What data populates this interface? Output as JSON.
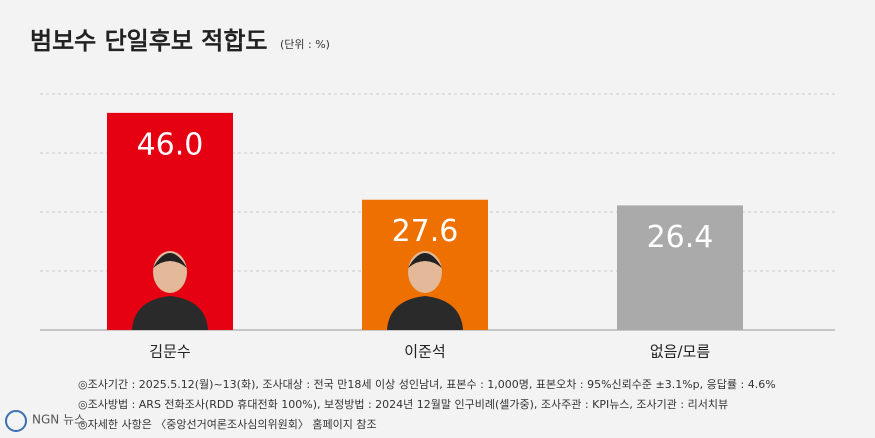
{
  "chart_data": {
    "type": "bar",
    "title": "범보수 단일후보 적합도",
    "subtitle": "(단위 : %)",
    "categories": [
      "김문수",
      "이준석",
      "없음/모름"
    ],
    "values": [
      46.0,
      27.6,
      26.4
    ],
    "value_labels": [
      "46.0",
      "27.6",
      "26.4"
    ],
    "colors": [
      "#e50012",
      "#ee7100",
      "#aaaaaa"
    ],
    "ylim": [
      0,
      50
    ],
    "yticks": [
      0,
      12.5,
      25,
      37.5,
      50
    ],
    "grid": true,
    "notes": [
      "◎조사기간 : 2025.5.12(월)~13(화), 조사대상 : 전국 만18세 이상 성인남녀, 표본수 : 1,000명, 표본오차 : 95%신뢰수준 ±3.1%p, 응답률 : 4.6%",
      "◎조사방법 : ARS 전화조사(RDD 휴대전화 100%), 보정방법 : 2024년 12월말 인구비례(셀가중), 조사주관 : KPI뉴스, 조사기관 : 리서치뷰",
      "◎자세한 사항은 〈중앙선거여론조사심의위원회〉 홈페이지 참조"
    ],
    "logo": "NGN 뉴스"
  }
}
